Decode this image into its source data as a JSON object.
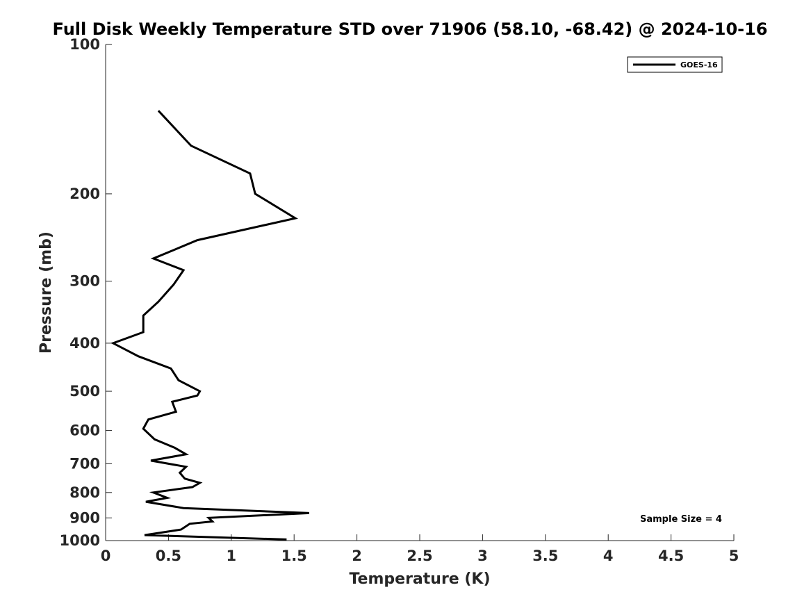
{
  "chart_data": {
    "type": "line",
    "title": "Full Disk Weekly Temperature STD over 71906 (58.10, -68.42) @ 2024-10-16",
    "xlabel": "Temperature (K)",
    "ylabel": "Pressure (mb)",
    "xlim": [
      0,
      5
    ],
    "ylim": [
      100,
      1000
    ],
    "yscale": "log",
    "yreversed": true,
    "xticks": [
      0,
      0.5,
      1,
      1.5,
      2,
      2.5,
      3,
      3.5,
      4,
      4.5,
      5
    ],
    "xtick_labels": [
      "0",
      "0.5",
      "1",
      "1.5",
      "2",
      "2.5",
      "3",
      "3.5",
      "4",
      "4.5",
      "5"
    ],
    "yticks": [
      100,
      200,
      300,
      400,
      500,
      600,
      700,
      800,
      900,
      1000
    ],
    "ytick_labels": [
      "100",
      "200",
      "300",
      "400",
      "500",
      "600",
      "700",
      "800",
      "900",
      "1000"
    ],
    "grid": false,
    "legend_position": "top-right",
    "annotation": "Sample Size = 4",
    "series": [
      {
        "name": "GOES-16",
        "color": "#000000",
        "points": [
          [
            0.42,
            136
          ],
          [
            0.68,
            160
          ],
          [
            1.15,
            182
          ],
          [
            1.19,
            200
          ],
          [
            1.51,
            224
          ],
          [
            0.73,
            248
          ],
          [
            0.38,
            270
          ],
          [
            0.62,
            285
          ],
          [
            0.54,
            305
          ],
          [
            0.42,
            330
          ],
          [
            0.3,
            352
          ],
          [
            0.3,
            365
          ],
          [
            0.3,
            380
          ],
          [
            0.06,
            400
          ],
          [
            0.26,
            425
          ],
          [
            0.52,
            450
          ],
          [
            0.58,
            475
          ],
          [
            0.75,
            500
          ],
          [
            0.73,
            510
          ],
          [
            0.53,
            525
          ],
          [
            0.56,
            550
          ],
          [
            0.34,
            570
          ],
          [
            0.3,
            595
          ],
          [
            0.39,
            625
          ],
          [
            0.55,
            650
          ],
          [
            0.64,
            670
          ],
          [
            0.36,
            690
          ],
          [
            0.64,
            710
          ],
          [
            0.59,
            730
          ],
          [
            0.63,
            750
          ],
          [
            0.75,
            765
          ],
          [
            0.69,
            780
          ],
          [
            0.38,
            800
          ],
          [
            0.49,
            820
          ],
          [
            0.32,
            835
          ],
          [
            0.62,
            860
          ],
          [
            1.62,
            880
          ],
          [
            0.82,
            900
          ],
          [
            0.85,
            915
          ],
          [
            0.67,
            925
          ],
          [
            0.6,
            950
          ],
          [
            0.31,
            975
          ],
          [
            1.44,
            995
          ]
        ]
      }
    ]
  }
}
